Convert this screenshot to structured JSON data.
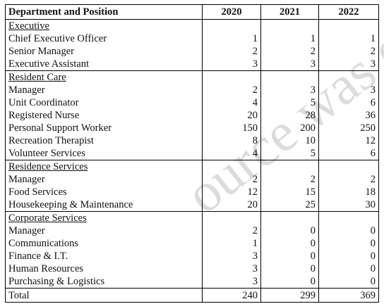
{
  "headers": {
    "department": "Department and Position",
    "years": [
      "2020",
      "2021",
      "2022"
    ]
  },
  "sections": [
    {
      "title": "Executive",
      "rows": [
        {
          "label": "Chief Executive Officer",
          "values": [
            "1",
            "1",
            "1"
          ]
        },
        {
          "label": "Senior Manager",
          "values": [
            "2",
            "2",
            "2"
          ]
        },
        {
          "label": "Executive Assistant",
          "values": [
            "3",
            "3",
            "3"
          ]
        }
      ]
    },
    {
      "title": "Resident Care",
      "rows": [
        {
          "label": "Manager",
          "values": [
            "2",
            "3",
            "3"
          ]
        },
        {
          "label": "Unit Coordinator",
          "values": [
            "4",
            "5",
            "6"
          ]
        },
        {
          "label": "Registered Nurse",
          "values": [
            "20",
            "28",
            "36"
          ]
        },
        {
          "label": "Personal Support Worker",
          "values": [
            "150",
            "200",
            "250"
          ]
        },
        {
          "label": "Recreation Therapist",
          "values": [
            "8",
            "10",
            "12"
          ]
        },
        {
          "label": "Volunteer Services",
          "values": [
            "4",
            "5",
            "6"
          ]
        }
      ]
    },
    {
      "title": "Residence Services",
      "rows": [
        {
          "label": "Manager",
          "values": [
            "2",
            "2",
            "2"
          ]
        },
        {
          "label": "Food Services",
          "values": [
            "12",
            "15",
            "18"
          ]
        },
        {
          "label": "Housekeeping & Maintenance",
          "values": [
            "20",
            "25",
            "30"
          ]
        }
      ]
    },
    {
      "title": "Corporate Services",
      "rows": [
        {
          "label": "Manager",
          "values": [
            "2",
            "0",
            "0"
          ]
        },
        {
          "label": "Communications",
          "values": [
            "1",
            "0",
            "0"
          ]
        },
        {
          "label": "Finance & I.T.",
          "values": [
            "3",
            "0",
            "0"
          ]
        },
        {
          "label": "Human Resources",
          "values": [
            "3",
            "0",
            "0"
          ]
        },
        {
          "label": "Purchasing & Logistics",
          "values": [
            "3",
            "0",
            "0"
          ]
        }
      ]
    }
  ],
  "total": {
    "label": "Total",
    "values": [
      "240",
      "299",
      "369"
    ]
  },
  "watermark": "ource was   ero co"
}
